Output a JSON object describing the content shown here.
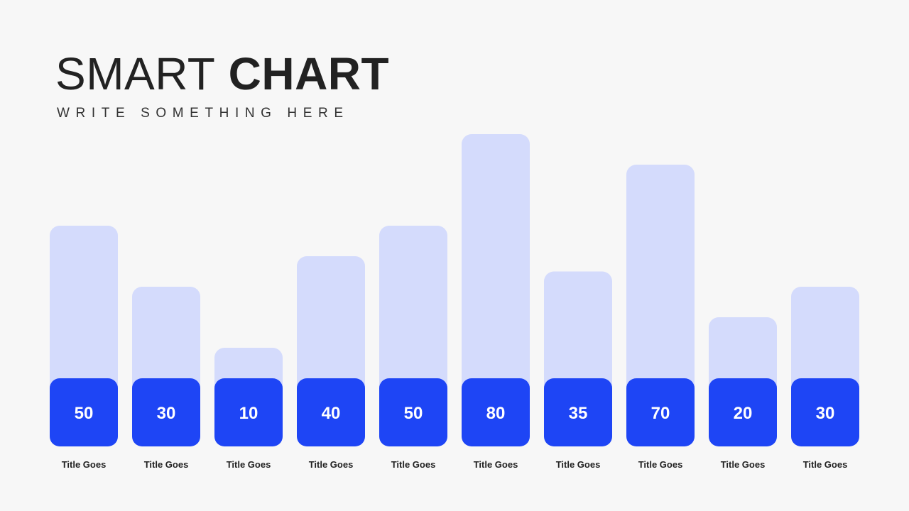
{
  "slide": {
    "title_light": "SMART",
    "title_bold": "CHART",
    "subtitle": "WRITE SOMETHING HERE"
  },
  "colors": {
    "background": "#f7f7f7",
    "bar_light": "#d4dbfc",
    "bar_dark": "#1e45f5",
    "value_text": "#ffffff",
    "label_text": "#222222",
    "title_text": "#222222"
  },
  "chart_data": {
    "type": "bar",
    "categories": [
      "Title Goes",
      "Title Goes",
      "Title Goes",
      "Title Goes",
      "Title Goes",
      "Title Goes",
      "Title Goes",
      "Title Goes",
      "Title Goes",
      "Title Goes"
    ],
    "values": [
      50,
      30,
      10,
      40,
      50,
      80,
      35,
      70,
      20,
      30
    ],
    "title": "SMART CHART",
    "subtitle": "WRITE SOMETHING HERE",
    "ylim": [
      0,
      80
    ],
    "grid": false,
    "legend": "none"
  }
}
